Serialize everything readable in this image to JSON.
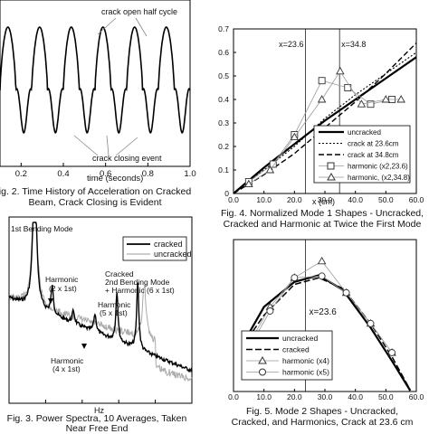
{
  "captions": {
    "fig2": [
      "ig. 2. Time History of Acceleration on Cracked",
      "Beam, Crack Closing is Evident"
    ],
    "fig3": [
      "Fig. 3. Power Spectra, 10 Averages, Taken",
      "Near Free End"
    ],
    "fig4": [
      "Fig. 4. Normalized Mode 1 Shapes - Uncracked,",
      "Cracked and Harmonic at Twice the First Mode"
    ],
    "fig5": [
      "Fig. 5.  Mode 2 Shapes - Uncracked,",
      "Cracked, and Harmonics, Crack at 23.6 cm"
    ]
  },
  "chart_data": [
    {
      "id": "fig2",
      "type": "line",
      "xlabel": "time (seconds)",
      "ylabel": "",
      "xlim": [
        0.1,
        1.0
      ],
      "xticks": [
        "0.2",
        "0.4",
        "0.6",
        "0.8",
        "1.0"
      ],
      "annotations": [
        "crack open half cycle",
        "crack closing event"
      ],
      "cycles": 6,
      "series": [
        {
          "values": []
        }
      ]
    },
    {
      "id": "fig3",
      "type": "line",
      "xlabel": "Hz",
      "xlim": [
        0,
        50
      ],
      "xticks": [
        "0",
        "10",
        "20",
        "30",
        "40",
        "50"
      ],
      "legend": [
        "cracked",
        "uncracked"
      ],
      "annotations": [
        "1st Bending Mode",
        "Harmonic (2 x 1st)",
        "Cracked 2nd Bending Mode + Harmonic (6 x 1st)",
        "Harmonic (5 x 1st)",
        "Harmonic (4 x 1st)"
      ],
      "series": [
        {
          "name": "cracked",
          "peaks_hz": [
            7,
            11.8,
            17.6,
            23.5,
            29.5,
            35.2
          ]
        },
        {
          "name": "uncracked",
          "peaks_hz": [
            7,
            37
          ]
        }
      ]
    },
    {
      "id": "fig4",
      "type": "scatter",
      "xlabel": "x (cm)",
      "xlim": [
        0,
        60
      ],
      "ylim": [
        0,
        0.7
      ],
      "xticks": [
        "0.0",
        "10.0",
        "20.0",
        "30.0",
        "40.0",
        "50.0",
        "60.0"
      ],
      "yticks": [
        "0",
        "0.1",
        "0.2",
        "0.3",
        "0.4",
        "0.5",
        "0.6",
        "0.7"
      ],
      "vlines": [
        {
          "x": 23.6,
          "label": "x=23.6"
        },
        {
          "x": 34.8,
          "label": "x=34.8"
        }
      ],
      "legend": [
        "uncracked",
        "crack at 23.6cm",
        "crack at 34.8cm",
        "harmonic (x2,23.6)",
        "harmonic, (x2,34.8)"
      ],
      "series": [
        {
          "name": "uncracked",
          "x": [
            0,
            10,
            20,
            30,
            40,
            50,
            60
          ],
          "y": [
            0.0,
            0.11,
            0.21,
            0.31,
            0.4,
            0.49,
            0.58
          ]
        },
        {
          "name": "crack at 23.6cm",
          "x": [
            0,
            10,
            20,
            30,
            40,
            50,
            60
          ],
          "y": [
            0.0,
            0.1,
            0.2,
            0.32,
            0.42,
            0.51,
            0.6
          ]
        },
        {
          "name": "crack at 34.8cm",
          "x": [
            0,
            10,
            20,
            30,
            40,
            50,
            60
          ],
          "y": [
            0.0,
            0.08,
            0.17,
            0.28,
            0.39,
            0.51,
            0.64
          ]
        },
        {
          "name": "harmonic (x2,23.6)",
          "x": [
            5,
            13,
            20,
            29,
            37.5,
            45,
            52
          ],
          "y": [
            0.05,
            0.125,
            0.25,
            0.48,
            0.45,
            0.38,
            0.4
          ]
        },
        {
          "name": "harmonic, (x2,34.8)",
          "x": [
            5,
            12,
            20,
            29,
            35,
            42,
            50,
            55
          ],
          "y": [
            0.04,
            0.1,
            0.24,
            0.4,
            0.52,
            0.38,
            0.4,
            0.4
          ]
        }
      ]
    },
    {
      "id": "fig5",
      "type": "line",
      "xlabel": "",
      "xlim": [
        0,
        60
      ],
      "xticks": [
        "0.0",
        "10.0",
        "20.0",
        "30.0",
        "40.0",
        "50.0",
        "60.0"
      ],
      "vlines": [
        {
          "x": 23.6,
          "label": "x=23.6"
        }
      ],
      "legend": [
        "uncracked",
        "cracked",
        "harmonic (x4)",
        "harmonic (x5)"
      ],
      "series": [
        {
          "name": "uncracked",
          "x": [
            3,
            10,
            20,
            28,
            36,
            45,
            52,
            58
          ],
          "y": [
            0.1,
            0.55,
            0.85,
            0.93,
            0.75,
            0.3,
            -0.1,
            -0.55
          ]
        },
        {
          "name": "cracked",
          "x": [
            3,
            10,
            20,
            28,
            36,
            45,
            52,
            58
          ],
          "y": [
            0.08,
            0.45,
            0.82,
            0.9,
            0.77,
            0.35,
            -0.05,
            -0.45
          ]
        },
        {
          "name": "harmonic (x4)",
          "x": [
            5,
            12,
            20,
            29,
            37,
            45,
            52
          ],
          "y": [
            0.1,
            0.55,
            0.9,
            1.1,
            0.72,
            0.35,
            0.0
          ]
        },
        {
          "name": "harmonic (x5)",
          "x": [
            5,
            12,
            20,
            29,
            37,
            45,
            52
          ],
          "y": [
            0.05,
            0.5,
            0.9,
            0.92,
            0.72,
            0.35,
            0.0
          ]
        }
      ]
    }
  ]
}
